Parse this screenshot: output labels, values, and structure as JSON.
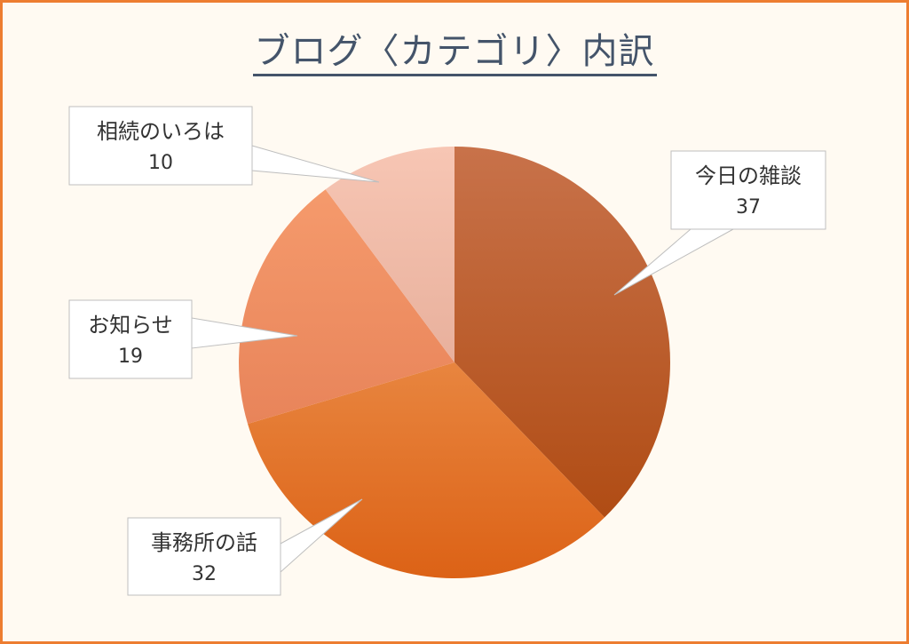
{
  "chart_data": {
    "type": "pie",
    "title": "ブログ〈カテゴリ〉内訳",
    "categories": [
      "今日の雑談",
      "事務所の話",
      "お知らせ",
      "相続のいろは"
    ],
    "values": [
      37,
      32,
      19,
      10
    ],
    "colors": {
      "今日の雑談": [
        "#C8724A",
        "#B04C14"
      ],
      "事務所の話": [
        "#E8853F",
        "#DC6216"
      ],
      "お知らせ": [
        "#F59A6C",
        "#E8845A"
      ],
      "相続のいろは": [
        "#F7C6B4",
        "#E8B09C"
      ]
    },
    "legend": "none",
    "data_labels": "callouts with category and value"
  },
  "frame": {
    "border_color": "#ED7D31",
    "background": "#FFFAF2"
  }
}
